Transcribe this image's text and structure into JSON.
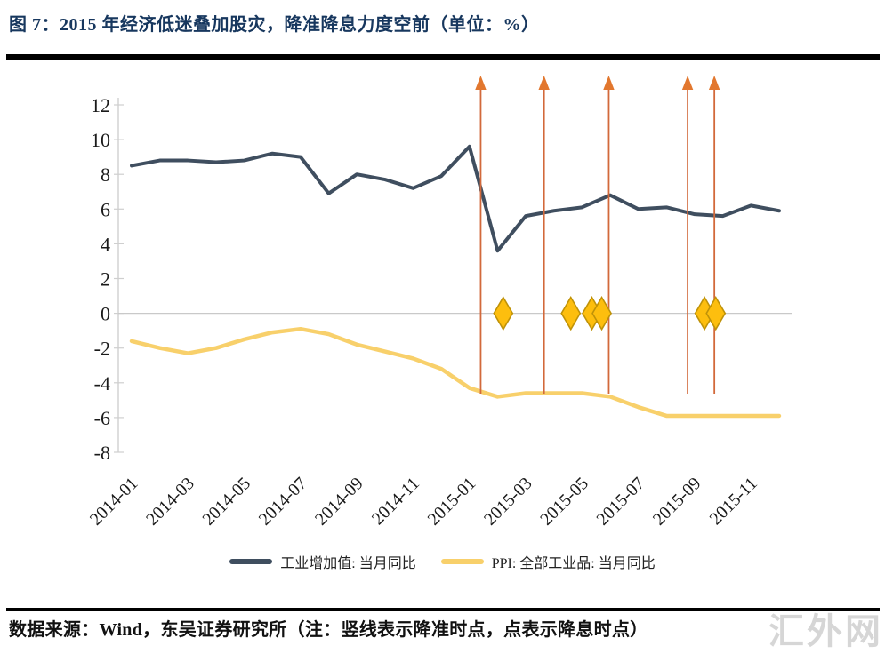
{
  "header": {
    "title": "图 7：2015 年经济低迷叠加股灾，降准降息力度空前（单位：%）"
  },
  "footer": {
    "source_note": "数据来源：Wind，东吴证券研究所（注：竖线表示降准时点，点表示降息时点）",
    "watermark": "汇外网"
  },
  "chart_data": {
    "type": "line",
    "title": "2015 年经济低迷叠加股灾，降准降息力度空前（单位：%）",
    "x": [
      "2014-01",
      "2014-02",
      "2014-03",
      "2014-04",
      "2014-05",
      "2014-06",
      "2014-07",
      "2014-08",
      "2014-09",
      "2014-10",
      "2014-11",
      "2014-12",
      "2015-01",
      "2015-02",
      "2015-03",
      "2015-04",
      "2015-05",
      "2015-06",
      "2015-07",
      "2015-08",
      "2015-09",
      "2015-10",
      "2015-11",
      "2015-12"
    ],
    "x_tick_every": 2,
    "x_tick_labels": [
      "2014-01",
      "2014-03",
      "2014-05",
      "2014-07",
      "2014-09",
      "2014-11",
      "2015-01",
      "2015-03",
      "2015-05",
      "2015-07",
      "2015-09",
      "2015-11"
    ],
    "yticks": [
      12,
      10,
      8,
      6,
      4,
      2,
      0,
      -2,
      -4,
      -6,
      -8
    ],
    "ylim": [
      -8,
      12
    ],
    "grid": "zero-line-only",
    "legend_position": "bottom",
    "series": [
      {
        "name": "工业增加值: 当月同比",
        "color": "#3F4E5F",
        "values": [
          8.5,
          8.8,
          8.8,
          8.7,
          8.8,
          9.2,
          9.0,
          6.9,
          8.0,
          7.7,
          7.2,
          7.9,
          9.6,
          3.6,
          5.6,
          5.9,
          6.1,
          6.8,
          6.0,
          6.1,
          5.7,
          5.6,
          6.2,
          5.9
        ]
      },
      {
        "name": "PPI: 全部工业品: 当月同比",
        "color": "#F8D06B",
        "values": [
          -1.6,
          -2.0,
          -2.3,
          -2.0,
          -1.5,
          -1.1,
          -0.9,
          -1.2,
          -1.8,
          -2.2,
          -2.6,
          -3.2,
          -4.3,
          -4.8,
          -4.6,
          -4.6,
          -4.6,
          -4.8,
          -5.4,
          -5.9,
          -5.9,
          -5.9,
          -5.9,
          -5.9
        ]
      }
    ],
    "annotations": {
      "rrr_cut_arrows": {
        "meaning": "竖线表示降准时点",
        "line_color": "#D2693B",
        "head_color": "#E2772E",
        "x_month_index": [
          12.4,
          14.65,
          16.95,
          19.75,
          20.7
        ]
      },
      "rate_cut_diamonds": {
        "meaning": "点表示降息时点",
        "fill": "#FDBE0E",
        "stroke": "#BF9208",
        "y": 0,
        "x_month_index": [
          13.2,
          15.6,
          16.35,
          16.7,
          20.35,
          20.75
        ]
      }
    }
  }
}
